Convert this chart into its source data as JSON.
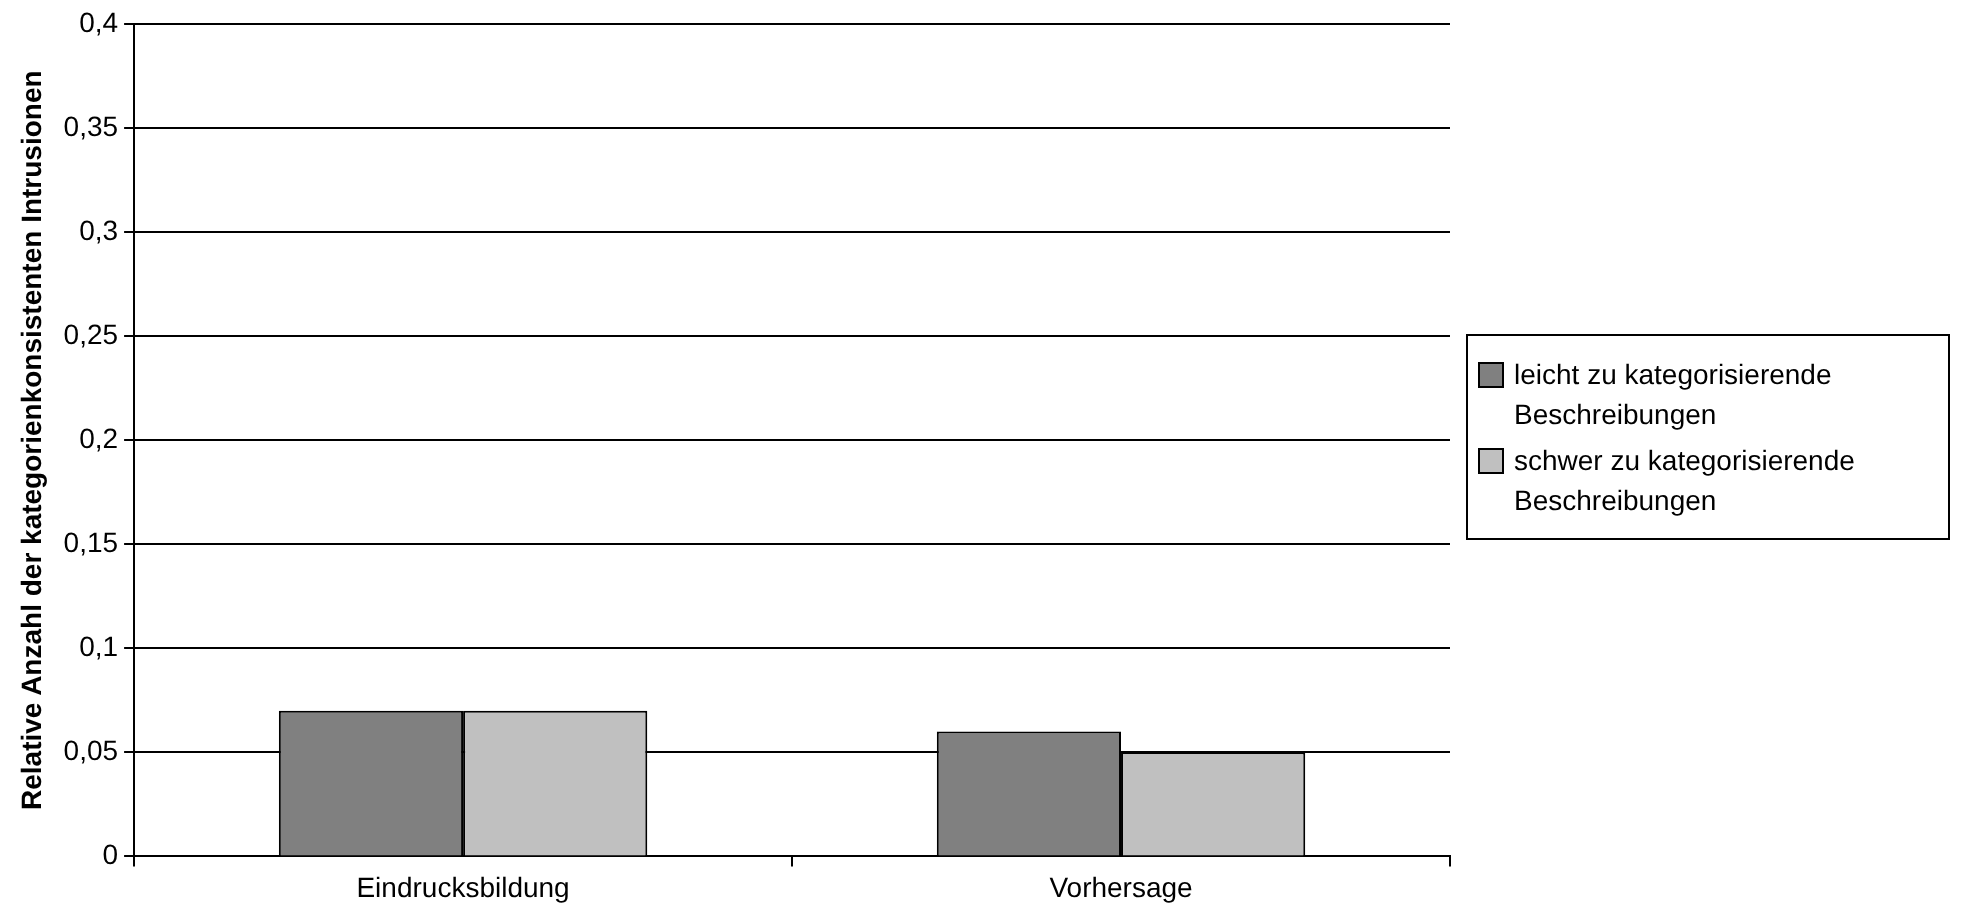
{
  "chart_data": {
    "type": "bar",
    "ylabel": "Relative Anzahl der kategorienkonsistenten Intrusionen",
    "categories": [
      "Eindrucksbildung",
      "Vorhersage"
    ],
    "series": [
      {
        "name": "leicht zu kategorisierende Beschreibungen",
        "color": "#808080",
        "values": [
          0.07,
          0.06
        ]
      },
      {
        "name": "schwer zu kategorisierende Beschreibungen",
        "color": "#c0c0c0",
        "values": [
          0.07,
          0.05
        ]
      }
    ],
    "ylim": [
      0,
      0.4
    ],
    "yticks": [
      0,
      {
        "value": 0.05,
        "label": "0,05"
      },
      {
        "value": 0.1,
        "label": "0,1"
      },
      {
        "value": 0.15,
        "label": "0,15"
      },
      {
        "value": 0.2,
        "label": "0,2"
      },
      {
        "value": 0.25,
        "label": "0,25"
      },
      {
        "value": 0.3,
        "label": "0,3"
      },
      {
        "value": 0.35,
        "label": "0,35"
      },
      {
        "value": 0.4,
        "label": "0,4"
      }
    ],
    "grid": "y",
    "legend": "right"
  }
}
